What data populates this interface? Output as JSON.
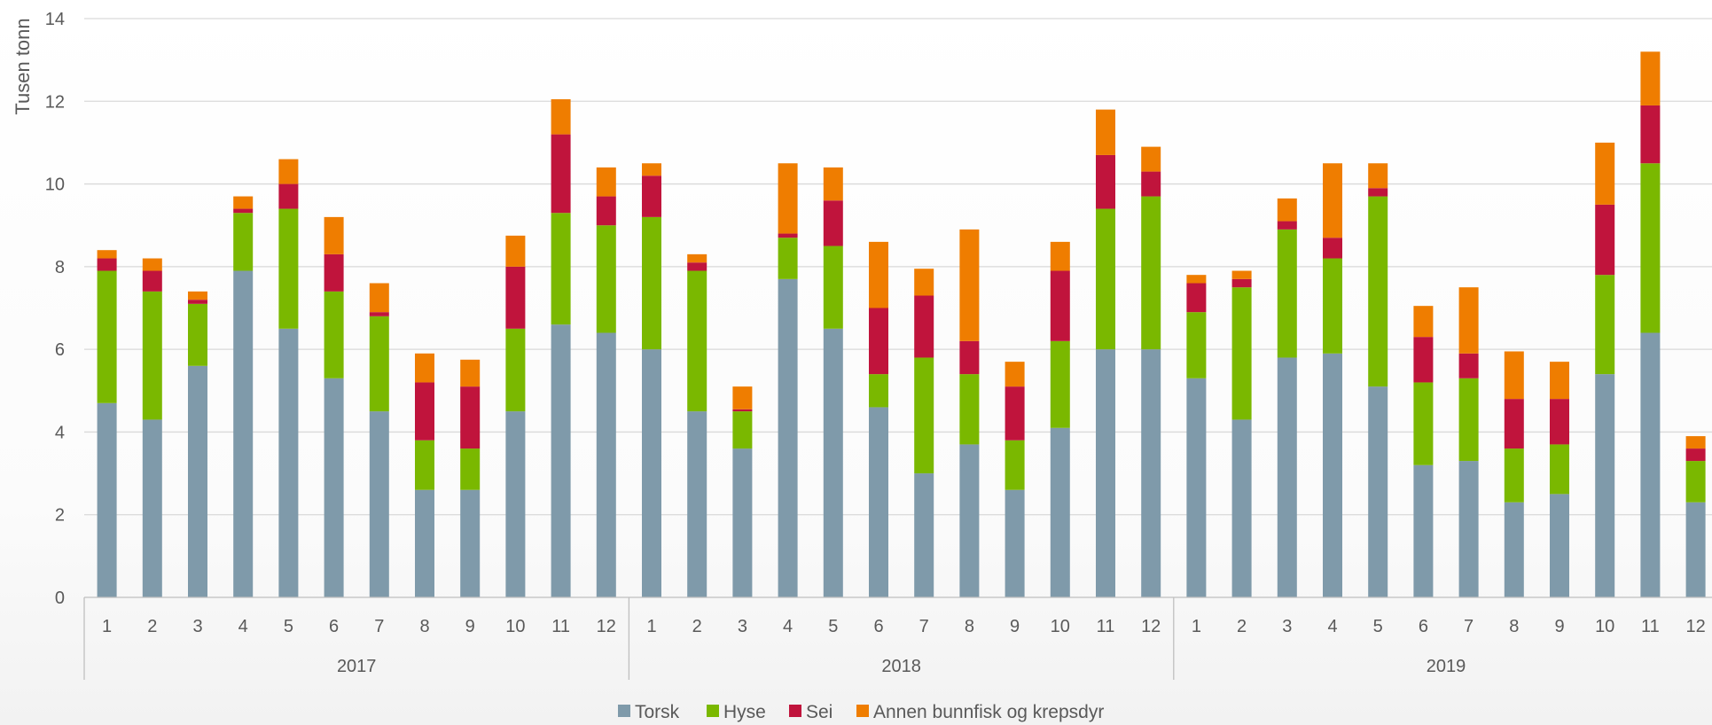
{
  "chart_data": {
    "type": "bar",
    "stacked": true,
    "ylabel": "Tusen tonn",
    "xlabel": "",
    "title": "",
    "ylim": [
      0,
      14
    ],
    "yticks": [
      0,
      2,
      4,
      6,
      8,
      10,
      12,
      14
    ],
    "grid": true,
    "legend_position": "bottom",
    "groups": [
      {
        "label": "2017",
        "months": [
          "1",
          "2",
          "3",
          "4",
          "5",
          "6",
          "7",
          "8",
          "9",
          "10",
          "11",
          "12"
        ]
      },
      {
        "label": "2018",
        "months": [
          "1",
          "2",
          "3",
          "4",
          "5",
          "6",
          "7",
          "8",
          "9",
          "10",
          "11",
          "12"
        ]
      },
      {
        "label": "2019",
        "months": [
          "1",
          "2",
          "3",
          "4",
          "5",
          "6",
          "7",
          "8",
          "9",
          "10",
          "11",
          "12"
        ]
      }
    ],
    "series": [
      {
        "name": "Torsk",
        "color": "#7f9aaa",
        "values": [
          4.7,
          4.3,
          5.6,
          7.9,
          6.5,
          5.3,
          4.5,
          2.6,
          2.6,
          4.5,
          6.6,
          6.4,
          6.0,
          4.5,
          3.6,
          7.7,
          6.5,
          4.6,
          3.0,
          3.7,
          2.6,
          4.1,
          6.0,
          6.0,
          5.3,
          4.3,
          5.8,
          5.9,
          5.1,
          3.2,
          3.3,
          2.3,
          2.5,
          5.4,
          6.4,
          2.3
        ]
      },
      {
        "name": "Hyse",
        "color": "#7ab800",
        "values": [
          3.2,
          3.1,
          1.5,
          1.4,
          2.9,
          2.1,
          2.3,
          1.2,
          1.0,
          2.0,
          2.7,
          2.6,
          3.2,
          3.4,
          0.9,
          1.0,
          2.0,
          0.8,
          2.8,
          1.7,
          1.2,
          2.1,
          3.4,
          3.7,
          1.6,
          3.2,
          3.1,
          2.3,
          4.6,
          2.0,
          2.0,
          1.3,
          1.2,
          2.4,
          4.1,
          1.0
        ]
      },
      {
        "name": "Sei",
        "color": "#c0143c",
        "values": [
          0.3,
          0.5,
          0.1,
          0.1,
          0.6,
          0.9,
          0.1,
          1.4,
          1.5,
          1.5,
          1.9,
          0.7,
          1.0,
          0.2,
          0.05,
          0.1,
          1.1,
          1.6,
          1.5,
          0.8,
          1.3,
          1.7,
          1.3,
          0.6,
          0.7,
          0.2,
          0.2,
          0.5,
          0.2,
          1.1,
          0.6,
          1.2,
          1.1,
          1.7,
          1.4,
          0.3
        ]
      },
      {
        "name": "Annen bunnfisk og krepsdyr",
        "color": "#ef7d00",
        "values": [
          0.2,
          0.3,
          0.2,
          0.3,
          0.6,
          0.9,
          0.7,
          0.7,
          0.65,
          0.75,
          0.85,
          0.7,
          0.3,
          0.2,
          0.55,
          1.7,
          0.8,
          1.6,
          0.65,
          2.7,
          0.6,
          0.7,
          1.1,
          0.6,
          0.2,
          0.2,
          0.55,
          1.8,
          0.6,
          0.75,
          1.6,
          1.15,
          0.9,
          1.5,
          1.3,
          0.3
        ]
      }
    ]
  }
}
